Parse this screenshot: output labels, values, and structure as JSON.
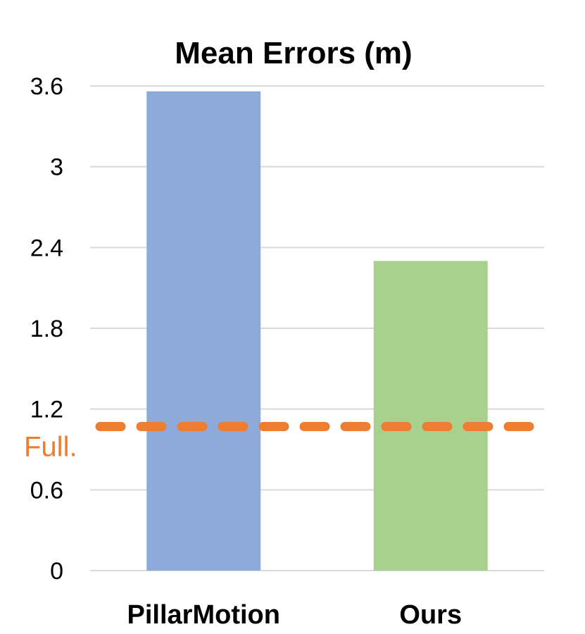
{
  "chart_data": {
    "type": "bar",
    "title": "Mean Errors (m)",
    "xlabel": "",
    "ylabel": "",
    "categories": [
      "PillarMotion",
      "Ours"
    ],
    "values": [
      3.56,
      2.3
    ],
    "bar_colors": [
      "#8eaadb",
      "#a9d18e"
    ],
    "ylim": [
      0,
      3.6
    ],
    "yticks": [
      "0",
      "0.6",
      "1.2",
      "1.8",
      "2.4",
      "3",
      "3.6"
    ],
    "grid": true,
    "reference_line": {
      "label": "Full.",
      "value": 1.07,
      "color": "#ed7d31",
      "style": "dashed"
    }
  }
}
